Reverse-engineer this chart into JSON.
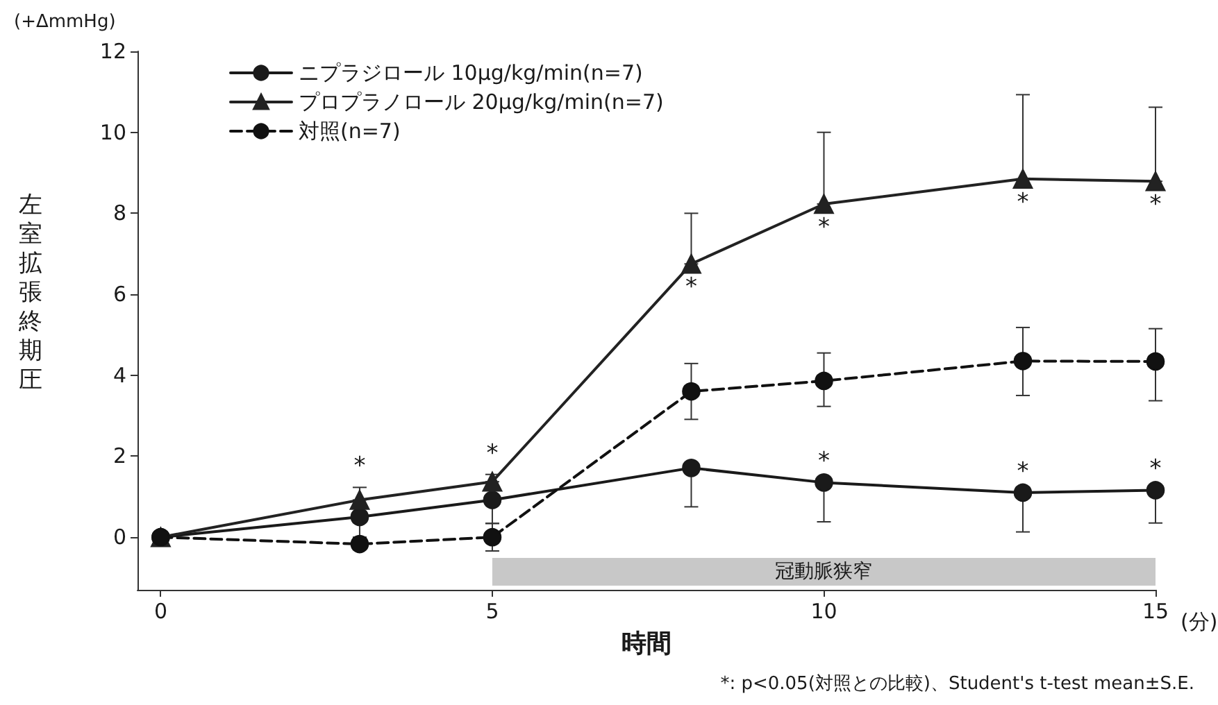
{
  "chart_data": {
    "type": "line",
    "xlabel": "時間",
    "ylabel": "左室拡張終期圧",
    "x": [
      0,
      3,
      5,
      8,
      10,
      13,
      15
    ],
    "xlim": [
      -0.35,
      15
    ],
    "xticks": [
      0,
      5,
      10,
      15
    ],
    "ylim": [
      -1.3,
      12
    ],
    "yticks": [
      0,
      2,
      4,
      6,
      8,
      10,
      12
    ],
    "grid": false,
    "legend": "top left",
    "series": [
      {
        "name": "ニプラジロール 10μg/kg/min(n=7)",
        "color": "#1a1a1a",
        "marker": "circle",
        "line_style": "solid",
        "values": [
          0,
          0.5,
          0.92,
          1.71,
          1.35,
          1.1,
          1.16
        ],
        "errors": [
          null,
          [
            0,
            0.5
          ],
          [
            0.34,
            0.92
          ],
          [
            0.75,
            1.71
          ],
          [
            0.38,
            1.35
          ],
          [
            0.13,
            1.1
          ],
          [
            0.35,
            1.16
          ]
        ]
      },
      {
        "name": "プロプラノロール 20μg/kg/min(n=7)",
        "color": "#222222",
        "marker": "triangle",
        "line_style": "solid",
        "values": [
          0,
          0.92,
          1.37,
          6.75,
          8.23,
          8.85,
          8.79
        ],
        "errors": [
          null,
          [
            0.92,
            1.23
          ],
          [
            1.37,
            1.55
          ],
          [
            6.75,
            8.0
          ],
          [
            8.23,
            10.0
          ],
          [
            8.85,
            10.93
          ],
          [
            8.79,
            10.62
          ]
        ]
      },
      {
        "name": "対照(n=7)",
        "color": "#111111",
        "marker": "circle",
        "line_style": "dashed",
        "values": [
          0,
          -0.17,
          0,
          3.6,
          3.86,
          4.35,
          4.34
        ],
        "errors": [
          null,
          null,
          [
            -0.34,
            0.34
          ],
          [
            2.91,
            4.29
          ],
          [
            3.23,
            4.55
          ],
          [
            3.5,
            5.18
          ],
          [
            3.37,
            5.15
          ]
        ]
      }
    ],
    "bands": [
      {
        "axis": "x",
        "from": 5,
        "to": 15,
        "label": "冠動脈狭窄",
        "color": "#c8c8c8"
      }
    ],
    "annotations": [
      "(+ΔmmHg)",
      "(分)",
      "*: p<0.05(対照との比較)、Student's t-test mean±S.E.",
      {
        "text": "*",
        "x": 3,
        "y": 1.23
      },
      {
        "text": "*",
        "x": 5,
        "y": 1.55
      },
      {
        "text": "*",
        "x": 8,
        "y": 6.75
      },
      {
        "text": "*",
        "x": 10,
        "y": 8.23
      },
      {
        "text": "*",
        "x": 13,
        "y": 8.85
      },
      {
        "text": "*",
        "x": 15,
        "y": 8.79
      },
      {
        "text": "*",
        "x": 10,
        "y": 1.35
      },
      {
        "text": "*",
        "x": 13,
        "y": 1.1
      },
      {
        "text": "*",
        "x": 15,
        "y": 1.16
      }
    ]
  }
}
